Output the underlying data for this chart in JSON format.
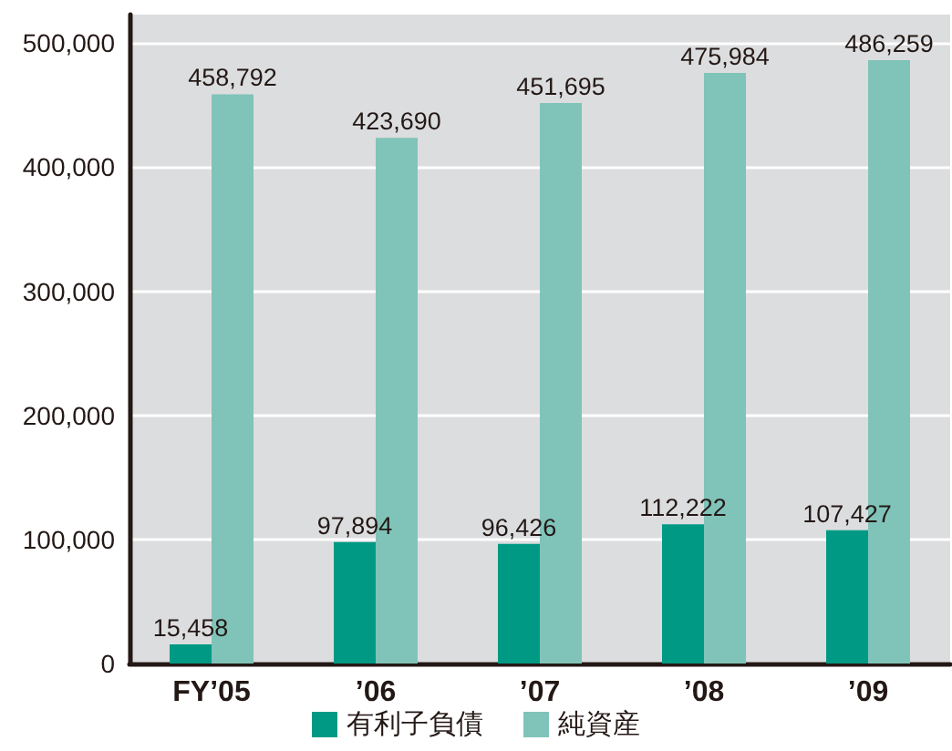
{
  "chart_data": {
    "type": "bar",
    "categories": [
      "FY’05",
      "’06",
      "’07",
      "’08",
      "’09"
    ],
    "series": [
      {
        "name": "有利子負債",
        "color": "#009a84",
        "values": [
          15458,
          97894,
          96426,
          112222,
          107427
        ],
        "value_labels": [
          "15,458",
          "97,894",
          "96,426",
          "112,222",
          "107,427"
        ]
      },
      {
        "name": "純資産",
        "color": "#80c3b9",
        "values": [
          458792,
          423690,
          451695,
          475984,
          486259
        ],
        "value_labels": [
          "458,792",
          "423,690",
          "451,695",
          "475,984",
          "486,259"
        ]
      }
    ],
    "ylim": [
      0,
      523000
    ],
    "yticks": [
      0,
      {
        "value": 100000,
        "label": "100,000"
      },
      {
        "value": 200000,
        "label": "200,000"
      },
      {
        "value": 300000,
        "label": "300,000"
      },
      {
        "value": 400000,
        "label": "400,000"
      },
      {
        "value": 500000,
        "label": "500,000"
      }
    ],
    "grid": "y",
    "legend": "bottom"
  }
}
